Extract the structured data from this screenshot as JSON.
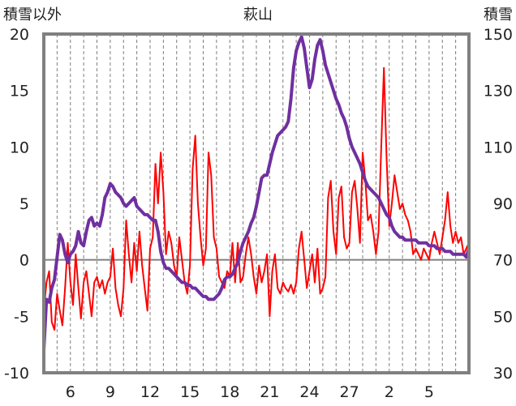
{
  "chart_data": {
    "type": "line",
    "title": "萩山",
    "ylabel_left": "積雪以外",
    "ylabel_right": "積雪",
    "x_tick_labels": [
      "6",
      "9",
      "12",
      "15",
      "18",
      "21",
      "24",
      "27",
      "2",
      "5"
    ],
    "y_left_ticks": [
      "20",
      "15",
      "10",
      "5",
      "0",
      "-5",
      "-10"
    ],
    "y_right_ticks": [
      "150",
      "130",
      "110",
      "90",
      "70",
      "50",
      "30"
    ],
    "ylim_left": [
      -10,
      20
    ],
    "ylim_right": [
      30,
      150
    ],
    "x_range_days": [
      4,
      36
    ],
    "grid": "vertical dashed daily",
    "colors": {
      "temperature": "#ff0000",
      "snow": "#7030a0",
      "axis": "#808080",
      "zero_line": "#808080"
    },
    "series": [
      {
        "axis": "left",
        "values": [
          [
            4.0,
            -4.5
          ],
          [
            4.2,
            -2.0
          ],
          [
            4.4,
            -1.0
          ],
          [
            4.6,
            -5.5
          ],
          [
            4.8,
            -6.2
          ],
          [
            5.0,
            -3.0
          ],
          [
            5.2,
            -4.5
          ],
          [
            5.4,
            -5.8
          ],
          [
            5.6,
            -2.5
          ],
          [
            5.8,
            1.5
          ],
          [
            6.0,
            -2.0
          ],
          [
            6.2,
            -4.0
          ],
          [
            6.4,
            0.5
          ],
          [
            6.6,
            -2.5
          ],
          [
            6.8,
            -5.2
          ],
          [
            7.0,
            -2.0
          ],
          [
            7.2,
            -1.0
          ],
          [
            7.4,
            -3.0
          ],
          [
            7.6,
            -5.0
          ],
          [
            7.8,
            -2.0
          ],
          [
            8.0,
            -1.5
          ],
          [
            8.2,
            -2.5
          ],
          [
            8.4,
            -1.8
          ],
          [
            8.6,
            -3.0
          ],
          [
            8.8,
            -2.0
          ],
          [
            9.0,
            -1.5
          ],
          [
            9.2,
            1.0
          ],
          [
            9.4,
            -2.5
          ],
          [
            9.6,
            -4.0
          ],
          [
            9.8,
            -5.0
          ],
          [
            10.0,
            -2.5
          ],
          [
            10.2,
            3.5
          ],
          [
            10.4,
            0.5
          ],
          [
            10.6,
            -2.0
          ],
          [
            10.8,
            1.5
          ],
          [
            11.0,
            -1.0
          ],
          [
            11.2,
            2.5
          ],
          [
            11.4,
            -0.5
          ],
          [
            11.6,
            -2.5
          ],
          [
            11.8,
            -4.5
          ],
          [
            12.0,
            1.0
          ],
          [
            12.2,
            2.0
          ],
          [
            12.4,
            8.5
          ],
          [
            12.6,
            5.0
          ],
          [
            12.8,
            9.5
          ],
          [
            13.0,
            6.0
          ],
          [
            13.2,
            0.5
          ],
          [
            13.4,
            2.5
          ],
          [
            13.6,
            1.5
          ],
          [
            13.8,
            -0.5
          ],
          [
            14.0,
            -1.5
          ],
          [
            14.2,
            2.0
          ],
          [
            14.4,
            0.0
          ],
          [
            14.6,
            -2.0
          ],
          [
            14.8,
            -3.0
          ],
          [
            15.0,
            -0.5
          ],
          [
            15.2,
            8.0
          ],
          [
            15.4,
            11.0
          ],
          [
            15.6,
            5.0
          ],
          [
            15.8,
            2.0
          ],
          [
            16.0,
            -0.5
          ],
          [
            16.2,
            1.0
          ],
          [
            16.4,
            9.5
          ],
          [
            16.6,
            7.5
          ],
          [
            16.8,
            2.0
          ],
          [
            17.0,
            1.0
          ],
          [
            17.2,
            -1.5
          ],
          [
            17.4,
            -2.0
          ],
          [
            17.6,
            -2.5
          ],
          [
            17.8,
            -1.0
          ],
          [
            18.0,
            -1.5
          ],
          [
            18.2,
            1.5
          ],
          [
            18.4,
            -2.0
          ],
          [
            18.6,
            1.5
          ],
          [
            18.8,
            -2.0
          ],
          [
            19.0,
            -1.5
          ],
          [
            19.2,
            0.5
          ],
          [
            19.4,
            2.0
          ],
          [
            19.6,
            0.5
          ],
          [
            19.8,
            -1.5
          ],
          [
            20.0,
            -3.0
          ],
          [
            20.2,
            -0.5
          ],
          [
            20.4,
            -2.0
          ],
          [
            20.6,
            -1.0
          ],
          [
            20.8,
            0.5
          ],
          [
            21.0,
            -5.0
          ],
          [
            21.2,
            -1.0
          ],
          [
            21.4,
            0.5
          ],
          [
            21.6,
            -2.5
          ],
          [
            21.8,
            -3.0
          ],
          [
            22.0,
            -2.0
          ],
          [
            22.2,
            -2.5
          ],
          [
            22.4,
            -2.8
          ],
          [
            22.6,
            -2.2
          ],
          [
            22.8,
            -3.0
          ],
          [
            23.0,
            -2.0
          ],
          [
            23.2,
            1.0
          ],
          [
            23.4,
            2.5
          ],
          [
            23.6,
            0.0
          ],
          [
            23.8,
            -2.5
          ],
          [
            24.0,
            -1.0
          ],
          [
            24.2,
            0.5
          ],
          [
            24.4,
            -2.0
          ],
          [
            24.6,
            1.0
          ],
          [
            24.8,
            -3.0
          ],
          [
            25.0,
            -2.5
          ],
          [
            25.2,
            -1.5
          ],
          [
            25.4,
            5.5
          ],
          [
            25.6,
            7.0
          ],
          [
            25.8,
            2.5
          ],
          [
            26.0,
            0.5
          ],
          [
            26.2,
            5.5
          ],
          [
            26.4,
            6.5
          ],
          [
            26.6,
            2.0
          ],
          [
            26.8,
            1.0
          ],
          [
            27.0,
            1.5
          ],
          [
            27.2,
            6.0
          ],
          [
            27.4,
            7.0
          ],
          [
            27.6,
            4.5
          ],
          [
            27.8,
            1.5
          ],
          [
            28.0,
            9.5
          ],
          [
            28.2,
            7.0
          ],
          [
            28.4,
            3.5
          ],
          [
            28.6,
            4.0
          ],
          [
            28.8,
            2.5
          ],
          [
            29.0,
            0.5
          ],
          [
            29.2,
            2.5
          ],
          [
            29.4,
            10.0
          ],
          [
            29.6,
            17.0
          ],
          [
            29.8,
            9.0
          ],
          [
            30.0,
            3.0
          ],
          [
            30.2,
            5.0
          ],
          [
            30.4,
            7.5
          ],
          [
            30.6,
            6.0
          ],
          [
            30.8,
            4.5
          ],
          [
            31.0,
            5.0
          ],
          [
            31.2,
            4.0
          ],
          [
            31.4,
            3.5
          ],
          [
            31.6,
            2.5
          ],
          [
            31.8,
            0.5
          ],
          [
            32.0,
            1.0
          ],
          [
            32.2,
            0.5
          ],
          [
            32.4,
            0.0
          ],
          [
            32.6,
            1.0
          ],
          [
            32.8,
            0.5
          ],
          [
            33.0,
            0.0
          ],
          [
            33.2,
            1.5
          ],
          [
            33.4,
            2.5
          ],
          [
            33.6,
            1.5
          ],
          [
            33.8,
            0.5
          ],
          [
            34.0,
            2.0
          ],
          [
            34.2,
            3.5
          ],
          [
            34.4,
            6.0
          ],
          [
            34.6,
            3.0
          ],
          [
            34.8,
            1.5
          ],
          [
            35.0,
            2.5
          ],
          [
            35.2,
            1.5
          ],
          [
            35.4,
            2.0
          ],
          [
            35.6,
            0.5
          ],
          [
            35.8,
            1.0
          ],
          [
            36.0,
            1.5
          ]
        ]
      },
      {
        "axis": "right",
        "values": [
          [
            4.0,
            38
          ],
          [
            4.2,
            56
          ],
          [
            4.4,
            55
          ],
          [
            4.6,
            60
          ],
          [
            4.8,
            63
          ],
          [
            5.0,
            71
          ],
          [
            5.2,
            79
          ],
          [
            5.4,
            77
          ],
          [
            5.6,
            72
          ],
          [
            5.8,
            69
          ],
          [
            6.0,
            72
          ],
          [
            6.2,
            73
          ],
          [
            6.4,
            75
          ],
          [
            6.6,
            80
          ],
          [
            6.8,
            76
          ],
          [
            7.0,
            75
          ],
          [
            7.2,
            80
          ],
          [
            7.4,
            84
          ],
          [
            7.6,
            85
          ],
          [
            7.8,
            82
          ],
          [
            8.0,
            83
          ],
          [
            8.2,
            82
          ],
          [
            8.4,
            86
          ],
          [
            8.6,
            92
          ],
          [
            8.8,
            94
          ],
          [
            9.0,
            97
          ],
          [
            9.2,
            96
          ],
          [
            9.4,
            94
          ],
          [
            9.6,
            93
          ],
          [
            9.8,
            92
          ],
          [
            10.0,
            90
          ],
          [
            10.2,
            89
          ],
          [
            10.4,
            90
          ],
          [
            10.6,
            91
          ],
          [
            10.8,
            92
          ],
          [
            11.0,
            89
          ],
          [
            11.2,
            88
          ],
          [
            11.4,
            87
          ],
          [
            11.6,
            86
          ],
          [
            11.8,
            86
          ],
          [
            12.0,
            85
          ],
          [
            12.2,
            84
          ],
          [
            12.4,
            84
          ],
          [
            12.6,
            80
          ],
          [
            12.8,
            73
          ],
          [
            13.0,
            69
          ],
          [
            13.2,
            67
          ],
          [
            13.4,
            67
          ],
          [
            13.6,
            66
          ],
          [
            13.8,
            65
          ],
          [
            14.0,
            64
          ],
          [
            14.2,
            63
          ],
          [
            14.4,
            62
          ],
          [
            14.6,
            62
          ],
          [
            14.8,
            61
          ],
          [
            15.0,
            61
          ],
          [
            15.2,
            60
          ],
          [
            15.4,
            60
          ],
          [
            15.6,
            59
          ],
          [
            15.8,
            58
          ],
          [
            16.0,
            57
          ],
          [
            16.2,
            57
          ],
          [
            16.4,
            56
          ],
          [
            16.6,
            56
          ],
          [
            16.8,
            56
          ],
          [
            17.0,
            57
          ],
          [
            17.2,
            58
          ],
          [
            17.4,
            60
          ],
          [
            17.6,
            63
          ],
          [
            17.8,
            64
          ],
          [
            18.0,
            64
          ],
          [
            18.2,
            65
          ],
          [
            18.4,
            67
          ],
          [
            18.6,
            69
          ],
          [
            18.8,
            73
          ],
          [
            19.0,
            76
          ],
          [
            19.2,
            78
          ],
          [
            19.4,
            80
          ],
          [
            19.6,
            83
          ],
          [
            19.8,
            85
          ],
          [
            20.0,
            89
          ],
          [
            20.2,
            94
          ],
          [
            20.4,
            99
          ],
          [
            20.6,
            100
          ],
          [
            20.8,
            100
          ],
          [
            21.0,
            104
          ],
          [
            21.2,
            108
          ],
          [
            21.4,
            111
          ],
          [
            21.6,
            114
          ],
          [
            21.8,
            115
          ],
          [
            22.0,
            116
          ],
          [
            22.2,
            117
          ],
          [
            22.4,
            119
          ],
          [
            22.6,
            127
          ],
          [
            22.8,
            138
          ],
          [
            23.0,
            144
          ],
          [
            23.2,
            147
          ],
          [
            23.4,
            149
          ],
          [
            23.6,
            145
          ],
          [
            23.8,
            138
          ],
          [
            24.0,
            131
          ],
          [
            24.2,
            134
          ],
          [
            24.4,
            141
          ],
          [
            24.6,
            146
          ],
          [
            24.8,
            148
          ],
          [
            25.0,
            144
          ],
          [
            25.2,
            139
          ],
          [
            25.4,
            136
          ],
          [
            25.6,
            133
          ],
          [
            25.8,
            130
          ],
          [
            26.0,
            127
          ],
          [
            26.2,
            125
          ],
          [
            26.4,
            122
          ],
          [
            26.6,
            120
          ],
          [
            26.8,
            117
          ],
          [
            27.0,
            113
          ],
          [
            27.2,
            110
          ],
          [
            27.4,
            108
          ],
          [
            27.6,
            106
          ],
          [
            27.8,
            104
          ],
          [
            28.0,
            101
          ],
          [
            28.2,
            98
          ],
          [
            28.4,
            96
          ],
          [
            28.6,
            95
          ],
          [
            28.8,
            94
          ],
          [
            29.0,
            93
          ],
          [
            29.2,
            92
          ],
          [
            29.4,
            90
          ],
          [
            29.6,
            88
          ],
          [
            29.8,
            86
          ],
          [
            30.0,
            85
          ],
          [
            30.2,
            82
          ],
          [
            30.4,
            80
          ],
          [
            30.6,
            79
          ],
          [
            30.8,
            78
          ],
          [
            31.0,
            78
          ],
          [
            31.2,
            77
          ],
          [
            31.4,
            77
          ],
          [
            31.6,
            77
          ],
          [
            31.8,
            77
          ],
          [
            32.0,
            77
          ],
          [
            32.2,
            76
          ],
          [
            32.4,
            76
          ],
          [
            32.6,
            76
          ],
          [
            32.8,
            76
          ],
          [
            33.0,
            75
          ],
          [
            33.2,
            75
          ],
          [
            33.4,
            75
          ],
          [
            33.6,
            74
          ],
          [
            33.8,
            74
          ],
          [
            34.0,
            74
          ],
          [
            34.2,
            73
          ],
          [
            34.4,
            73
          ],
          [
            34.6,
            73
          ],
          [
            34.8,
            72
          ],
          [
            35.0,
            72
          ],
          [
            35.2,
            72
          ],
          [
            35.4,
            72
          ],
          [
            35.6,
            72
          ],
          [
            35.8,
            71
          ],
          [
            36.0,
            74
          ]
        ]
      }
    ]
  }
}
